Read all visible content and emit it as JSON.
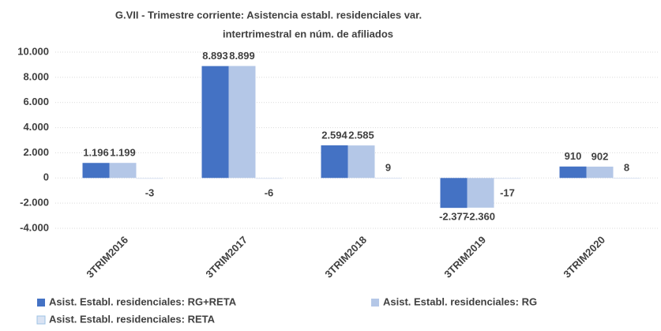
{
  "chart_data": {
    "type": "bar",
    "title": [
      "G.VII - Trimestre corriente: Asistencia establ. residenciales var.",
      "intertrimestral en núm. de afiliados"
    ],
    "categories": [
      "3TRIM2016",
      "3TRIM2017",
      "3TRIM2018",
      "3TRIM2019",
      "3TRIM2020"
    ],
    "series": [
      {
        "name": "Asist. Establ. residenciales: RG+RETA",
        "color": "#4472c4",
        "values": [
          1196,
          8893,
          2594,
          -2377,
          910
        ],
        "value_labels": [
          "1.196",
          "8.893",
          "2.594",
          "-2.377",
          "910"
        ]
      },
      {
        "name": "Asist. Establ. residenciales: RG",
        "color": "#b4c7e7",
        "values": [
          1199,
          8899,
          2585,
          -2360,
          902
        ],
        "value_labels": [
          "1.199",
          "8.899",
          "2.585",
          "-2.360",
          "902"
        ]
      },
      {
        "name": "Asist. Establ. residenciales: RETA",
        "color": "#dae3f3",
        "values": [
          -3,
          -6,
          9,
          -17,
          8
        ],
        "value_labels": [
          "-3",
          "-6",
          "9",
          "-17",
          "8"
        ]
      }
    ],
    "ylim": [
      -4000,
      10000
    ],
    "yticks": [
      {
        "value": -4000,
        "label": "-4.000"
      },
      {
        "value": -2000,
        "label": "-2.000"
      },
      0,
      {
        "value": 2000,
        "label": "2.000"
      },
      {
        "value": 4000,
        "label": "4.000"
      },
      {
        "value": 6000,
        "label": "6.000"
      },
      {
        "value": 8000,
        "label": "8.000"
      },
      {
        "value": 10000,
        "label": "10.000"
      }
    ],
    "grid": true
  }
}
